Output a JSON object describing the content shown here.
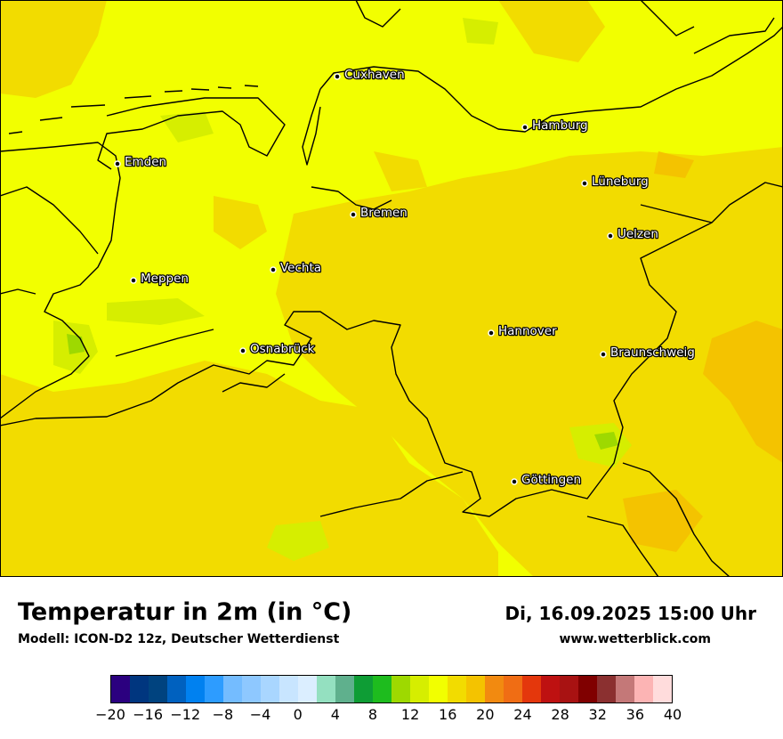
{
  "title": "Temperatur in 2m (in °C)",
  "subtitle": "Modell: ICON-D2 12z, Deutscher Wetterdienst",
  "datetime": "Di, 16.09.2025 15:00 Uhr",
  "website": "www.wetterblick.com",
  "cities": [
    {
      "name": "Cuxhaven"
    },
    {
      "name": "Hamburg"
    },
    {
      "name": "Emden"
    },
    {
      "name": "Lüneburg"
    },
    {
      "name": "Bremen"
    },
    {
      "name": "Uelzen"
    },
    {
      "name": "Vechta"
    },
    {
      "name": "Meppen"
    },
    {
      "name": "Hannover"
    },
    {
      "name": "Osnabrück"
    },
    {
      "name": "Braunschweig"
    },
    {
      "name": "Göttingen"
    }
  ],
  "legend": {
    "colors": [
      "#2b007f",
      "#00367f",
      "#00437f",
      "#0061bf",
      "#0081f0",
      "#2d9cff",
      "#74bcff",
      "#8ec8ff",
      "#a9d6ff",
      "#c8e5ff",
      "#dbeeff",
      "#94e0c0",
      "#5fb08d",
      "#0e9d35",
      "#1ebc1e",
      "#9ed900",
      "#d6ee00",
      "#f2ff00",
      "#f2dc00",
      "#f4c300",
      "#f28a10",
      "#f06d14",
      "#e4370c",
      "#be1111",
      "#a81212",
      "#800000",
      "#8b3030",
      "#c47878",
      "#fcb4b4",
      "#ffdcdc"
    ],
    "tick_labels": [
      "−20",
      "−16",
      "−12",
      "−8",
      "−4",
      "0",
      "4",
      "8",
      "12",
      "16",
      "20",
      "24",
      "28",
      "32",
      "36",
      "40"
    ],
    "min": -20,
    "max": 40
  },
  "map_colors": {
    "warm": "#f2dc00",
    "mild": "#f2ff00",
    "cool": "#d6ee00",
    "hot": "#f4c300",
    "border": "#000000"
  }
}
